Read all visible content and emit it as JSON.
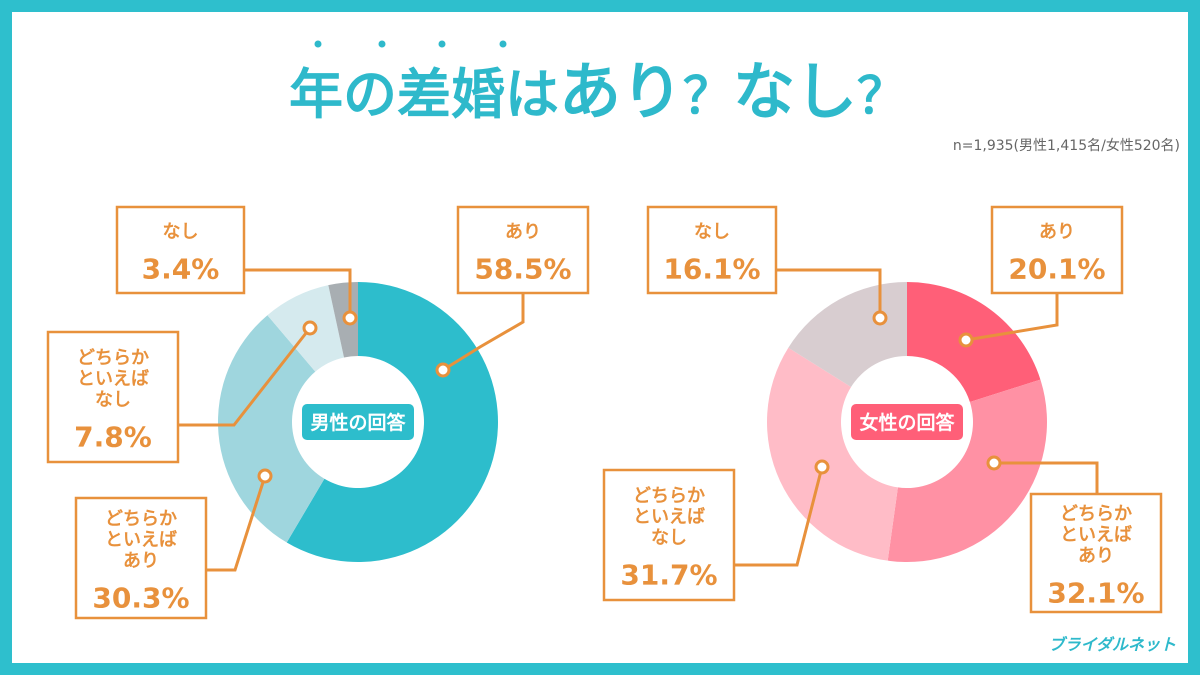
{
  "header": {
    "title_parts": [
      "年の差婚は",
      "あり",
      "？",
      "なし",
      "？"
    ],
    "sample": "n=1,935(男性1,415名/女性520名)"
  },
  "brand": {
    "logo_text": "ブライダルネット"
  },
  "colors": {
    "frame": "#2ebfcd",
    "title_blue": "#2eb9cb",
    "label_orange": "#e8913c",
    "male": [
      "#2dbdcc",
      "#9fd6de",
      "#d5eaee",
      "#a8aeb2"
    ],
    "female": [
      "#ff5f78",
      "#ff91a4",
      "#ffbcc7",
      "#d8cdd0"
    ]
  },
  "chart_data": [
    {
      "type": "pie",
      "title": "男性の回答",
      "labels": [
        "あり",
        "どちらかといえばあり",
        "どちらかといえばなし",
        "なし"
      ],
      "display_labels": [
        [
          "あり"
        ],
        [
          "どちらか",
          "といえば",
          "あり"
        ],
        [
          "どちらか",
          "といえば",
          "なし"
        ],
        [
          "なし"
        ]
      ],
      "values": [
        58.5,
        30.3,
        7.8,
        3.4
      ],
      "value_labels": [
        "58.5%",
        "30.3%",
        "7.8%",
        "3.4%"
      ]
    },
    {
      "type": "pie",
      "title": "女性の回答",
      "labels": [
        "あり",
        "どちらかといえばあり",
        "どちらかといえばなし",
        "なし"
      ],
      "display_labels": [
        [
          "あり"
        ],
        [
          "どちらか",
          "といえば",
          "あり"
        ],
        [
          "どちらか",
          "といえば",
          "なし"
        ],
        [
          "なし"
        ]
      ],
      "values": [
        20.1,
        32.1,
        31.7,
        16.1
      ],
      "value_labels": [
        "20.1%",
        "32.1%",
        "31.7%",
        "16.1%"
      ]
    }
  ]
}
